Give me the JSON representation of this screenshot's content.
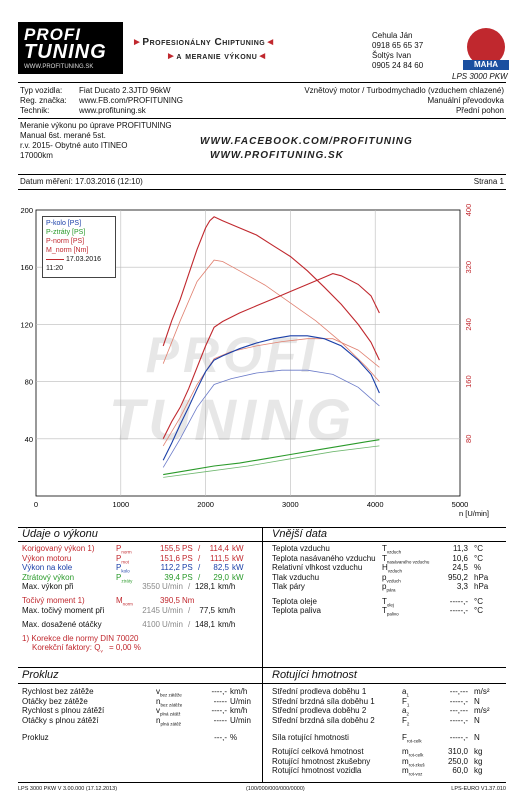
{
  "header": {
    "logo_line1": "PROFI",
    "logo_line2": "TUNING",
    "logo_url": "WWW.PROFITUNING.SK",
    "banner_line1": "Profesionálny Chiptuning",
    "banner_line2": "a meranie výkonu",
    "contact": [
      "Cehula Ján",
      "0918 65 65 37",
      "Šoltýs Ivan",
      "0905 24 84 60"
    ],
    "brand": "MAHA",
    "brand_sub": "LPS 3000 PKW"
  },
  "vehicle": {
    "type_label": "Typ vozidla:",
    "type_value": "Fiat Ducato 2.3JTD 96kW",
    "reg_label": "Reg. značka:",
    "reg_value": "www.FB.com/PROFITUNING",
    "tech_label": "Technik:",
    "tech_value": "www.profituning.sk",
    "right1": "Vznětový motor / Turbodmychadlo (vzduchem chlazené)",
    "right2": "Manuální převodovka",
    "right3": "Přední pohon"
  },
  "notes": {
    "lines": [
      "Meranie výkonu po úprave PROFITUNING",
      "Manual 6st. merané 5st.",
      "r.v. 2015- Obytné auto ITINEO",
      "17000km"
    ],
    "fb1": "WWW.FACEBOOK.COM/PROFITUNING",
    "fb2": "WWW.PROFITUNING.SK"
  },
  "meta": {
    "date": "Datum měření: 17.03.2016 (12:10)",
    "page": "Strana 1"
  },
  "chart_data": {
    "type": "line",
    "xlabel": "n [U/min]",
    "xlim": [
      0,
      5000
    ],
    "ylim_left": [
      0,
      200
    ],
    "ylim_right": [
      0,
      400
    ],
    "xticks": [
      "0",
      "1000",
      "2000",
      "3000",
      "4000",
      "5000"
    ],
    "yticks_left": [
      "40",
      "80",
      "120",
      "160",
      "200"
    ],
    "yticks_right": [
      "80",
      "160",
      "240",
      "320",
      "400"
    ],
    "legend": [
      "P-kolo [PS]",
      "P-ztráty [PS]",
      "P-norm [PS]",
      "M_norm [Nm]",
      "17.03.2016 11:20"
    ],
    "series": [
      {
        "name": "P-norm [PS]",
        "color": "#c0282e",
        "x": [
          1500,
          1600,
          1700,
          1800,
          1900,
          2000,
          2100,
          2200,
          2400,
          2600,
          2800,
          3000,
          3200,
          3400,
          3500,
          3600,
          3800,
          3950,
          4050
        ],
        "values": [
          40,
          52,
          62,
          75,
          90,
          105,
          118,
          122,
          128,
          133,
          138,
          143,
          148,
          153,
          155.5,
          154,
          148,
          140,
          128
        ]
      },
      {
        "name": "M_norm [Nm]",
        "axis": "right",
        "color": "#c0282e",
        "x": [
          1500,
          1600,
          1700,
          1800,
          1900,
          2000,
          2050,
          2100,
          2200,
          2400,
          2600,
          2800,
          3000,
          3200,
          3400,
          3600,
          3800,
          3950,
          4050
        ],
        "values": [
          210,
          245,
          275,
          310,
          345,
          375,
          385,
          390.5,
          385,
          375,
          365,
          350,
          335,
          315,
          292,
          268,
          240,
          215,
          190
        ]
      },
      {
        "name": "P-kolo [PS]",
        "color": "#1a3fa8",
        "x": [
          1500,
          1600,
          1700,
          1800,
          1900,
          2000,
          2100,
          2200,
          2400,
          2600,
          2800,
          3000,
          3200,
          3400,
          3600,
          3800,
          3950,
          4050
        ],
        "values": [
          25,
          37,
          50,
          62,
          75,
          87,
          95,
          98,
          103,
          107,
          110,
          112,
          112,
          110,
          105,
          95,
          85,
          72
        ]
      },
      {
        "name": "P-ztráty [PS]",
        "color": "#2a9a2a",
        "x": [
          1500,
          1800,
          2100,
          2400,
          2700,
          3000,
          3300,
          3600,
          3900,
          4050
        ],
        "values": [
          15,
          18,
          21,
          23,
          26,
          29,
          32,
          35,
          38,
          39.4
        ]
      }
    ],
    "series_before": [
      {
        "name": "P-norm before",
        "color": "#e08070",
        "x": [
          1500,
          1700,
          1900,
          2100,
          2300,
          2600,
          2900,
          3200,
          3500,
          3800,
          4050
        ],
        "values": [
          35,
          55,
          78,
          96,
          101,
          105,
          108,
          110,
          110,
          102,
          90
        ]
      },
      {
        "name": "M before",
        "axis": "right",
        "color": "#e08070",
        "x": [
          1500,
          1700,
          1900,
          2100,
          2200,
          2400,
          2700,
          3000,
          3300,
          3600,
          3900,
          4050
        ],
        "values": [
          185,
          245,
          300,
          330,
          328,
          315,
          295,
          270,
          245,
          215,
          180,
          160
        ]
      },
      {
        "name": "P-kolo before",
        "color": "#6a7ac8",
        "x": [
          1500,
          1700,
          1900,
          2100,
          2300,
          2600,
          2900,
          3200,
          3500,
          3800,
          4050
        ],
        "values": [
          20,
          40,
          62,
          78,
          82,
          86,
          88,
          88,
          85,
          76,
          63
        ]
      },
      {
        "name": "P-ztráty before",
        "color": "#70b870",
        "x": [
          1500,
          2000,
          2500,
          3000,
          3500,
          4050
        ],
        "values": [
          13,
          17,
          21,
          26,
          31,
          35
        ]
      }
    ]
  },
  "udaje": {
    "title": "Údaje o výkonu",
    "rows": [
      {
        "label": "Korigovaný výkon 1)",
        "sym": "P",
        "sub": "norm",
        "v1": "155,5",
        "u1": "PS",
        "v2": "114,4",
        "u2": "kW",
        "color": "red"
      },
      {
        "label": "Výkon motoru",
        "sym": "P",
        "sub": "mot",
        "v1": "151,6",
        "u1": "PS",
        "v2": "111,5",
        "u2": "kW",
        "color": "red"
      },
      {
        "label": "Výkon na kole",
        "sym": "P",
        "sub": "kolo",
        "v1": "112,2",
        "u1": "PS",
        "v2": "82,5",
        "u2": "kW",
        "color": "blue"
      },
      {
        "label": "Ztrátový výkon",
        "sym": "P",
        "sub": "ztráty",
        "v1": "39,4",
        "u1": "PS",
        "v2": "29,0",
        "u2": "kW",
        "color": "green"
      }
    ],
    "maxv_label": "Max. výkon při",
    "maxv_rpm": "3550",
    "maxv_unit": "U/min",
    "maxv_speed": "128,1",
    "maxv_su": "km/h",
    "torque_label": "Točivý moment 1)",
    "torque_sym": "M",
    "torque_sub": "norm",
    "torque_val": "390,5",
    "torque_unit": "Nm",
    "maxt_label": "Max. točivý moment při",
    "maxt_rpm": "2145",
    "maxt_unit": "U/min",
    "maxt_speed": "77,5",
    "maxt_su": "km/h",
    "maxr_label": "Max. dosažené otáčky",
    "maxr_rpm": "4100",
    "maxr_unit": "U/min",
    "maxr_speed": "148,1",
    "maxr_su": "km/h",
    "note1": "1) Korekce dle normy DIN 70020",
    "note2": "Korekční faktory: Q",
    "note2b": "v",
    "note2c": " =  0,00 %"
  },
  "vnejsi": {
    "title": "Vnější data",
    "rows": [
      {
        "label": "Teplota vzduchu",
        "sym": "T",
        "sub": "vzduch",
        "val": "11,3",
        "unit": "°C"
      },
      {
        "label": "Teplota nasávaného vzduchu",
        "sym": "T",
        "sub": "nasávaného vzduchu",
        "val": "10,6",
        "unit": "°C"
      },
      {
        "label": "Relativní vlhkost vzduchu",
        "sym": "H",
        "sub": "vzduch",
        "val": "24,5",
        "unit": "%"
      },
      {
        "label": "Tlak vzduchu",
        "sym": "p",
        "sub": "vzduch",
        "val": "950,2",
        "unit": "hPa"
      },
      {
        "label": "Tlak páry",
        "sym": "p",
        "sub": "pára",
        "val": "3,3",
        "unit": "hPa"
      }
    ],
    "rows2": [
      {
        "label": "Teplota oleje",
        "sym": "T",
        "sub": "olej",
        "val": "-----,-",
        "unit": "°C"
      },
      {
        "label": "Teplota paliva",
        "sym": "T",
        "sub": "palivo",
        "val": "-----,-",
        "unit": "°C"
      }
    ]
  },
  "prokluz": {
    "title": "Prokluz",
    "rows": [
      {
        "label": "Rychlost bez zátěže",
        "sym": "v",
        "sub": "bez zátěže",
        "val": "----,-",
        "unit": "km/h"
      },
      {
        "label": "Otáčky bez zátěže",
        "sym": "n",
        "sub": "bez zátěže",
        "val": "-----",
        "unit": "U/min"
      },
      {
        "label": "Rychlost s plnou zátěží",
        "sym": "v",
        "sub": "plná zátěž",
        "val": "----,-",
        "unit": "km/h"
      },
      {
        "label": "Otáčky s plnou zátěží",
        "sym": "n",
        "sub": "plná zátěž",
        "val": "-----",
        "unit": "U/min"
      }
    ],
    "prokluz_label": "Prokluz",
    "prokluz_val": "---,-",
    "prokluz_unit": "%"
  },
  "rotacni": {
    "title": "Rotujíci hmotnost",
    "rows": [
      {
        "label": "Střední prodleva doběhu 1",
        "sym": "a",
        "sub": "1",
        "val": "---,---",
        "unit": "m/s²"
      },
      {
        "label": "Střední brzdná síla doběhu 1",
        "sym": "F",
        "sub": "1",
        "val": "-----,-",
        "unit": "N"
      },
      {
        "label": "Střední prodleva doběhu 2",
        "sym": "a",
        "sub": "2",
        "val": "---,---",
        "unit": "m/s²"
      },
      {
        "label": "Střední brzdná síla doběhu 2",
        "sym": "F",
        "sub": "2",
        "val": "-----,-",
        "unit": "N"
      }
    ],
    "sila_label": "Síla rotující hmotnosti",
    "sila_sym": "F",
    "sila_sub": "rot-celk",
    "sila_val": "-----,-",
    "sila_unit": "N",
    "rows2": [
      {
        "label": "Rotující celková hmotnost",
        "sym": "m",
        "sub": "rot-celk",
        "val": "310,0",
        "unit": "kg"
      },
      {
        "label": "Rotující hmotnost zkušebny",
        "sym": "m",
        "sub": "rot-zkuš",
        "val": "250,0",
        "unit": "kg"
      },
      {
        "label": "Rotující hmotnost vozidla",
        "sym": "m",
        "sub": "rot-voz",
        "val": "60,0",
        "unit": "kg"
      }
    ]
  },
  "footer": {
    "left": "LPS 3000 PKW V 3.00.000 (17.12.2013)",
    "center": "(100/000/000/000/0000)",
    "right": "LPS-EURO V1.37.010"
  }
}
